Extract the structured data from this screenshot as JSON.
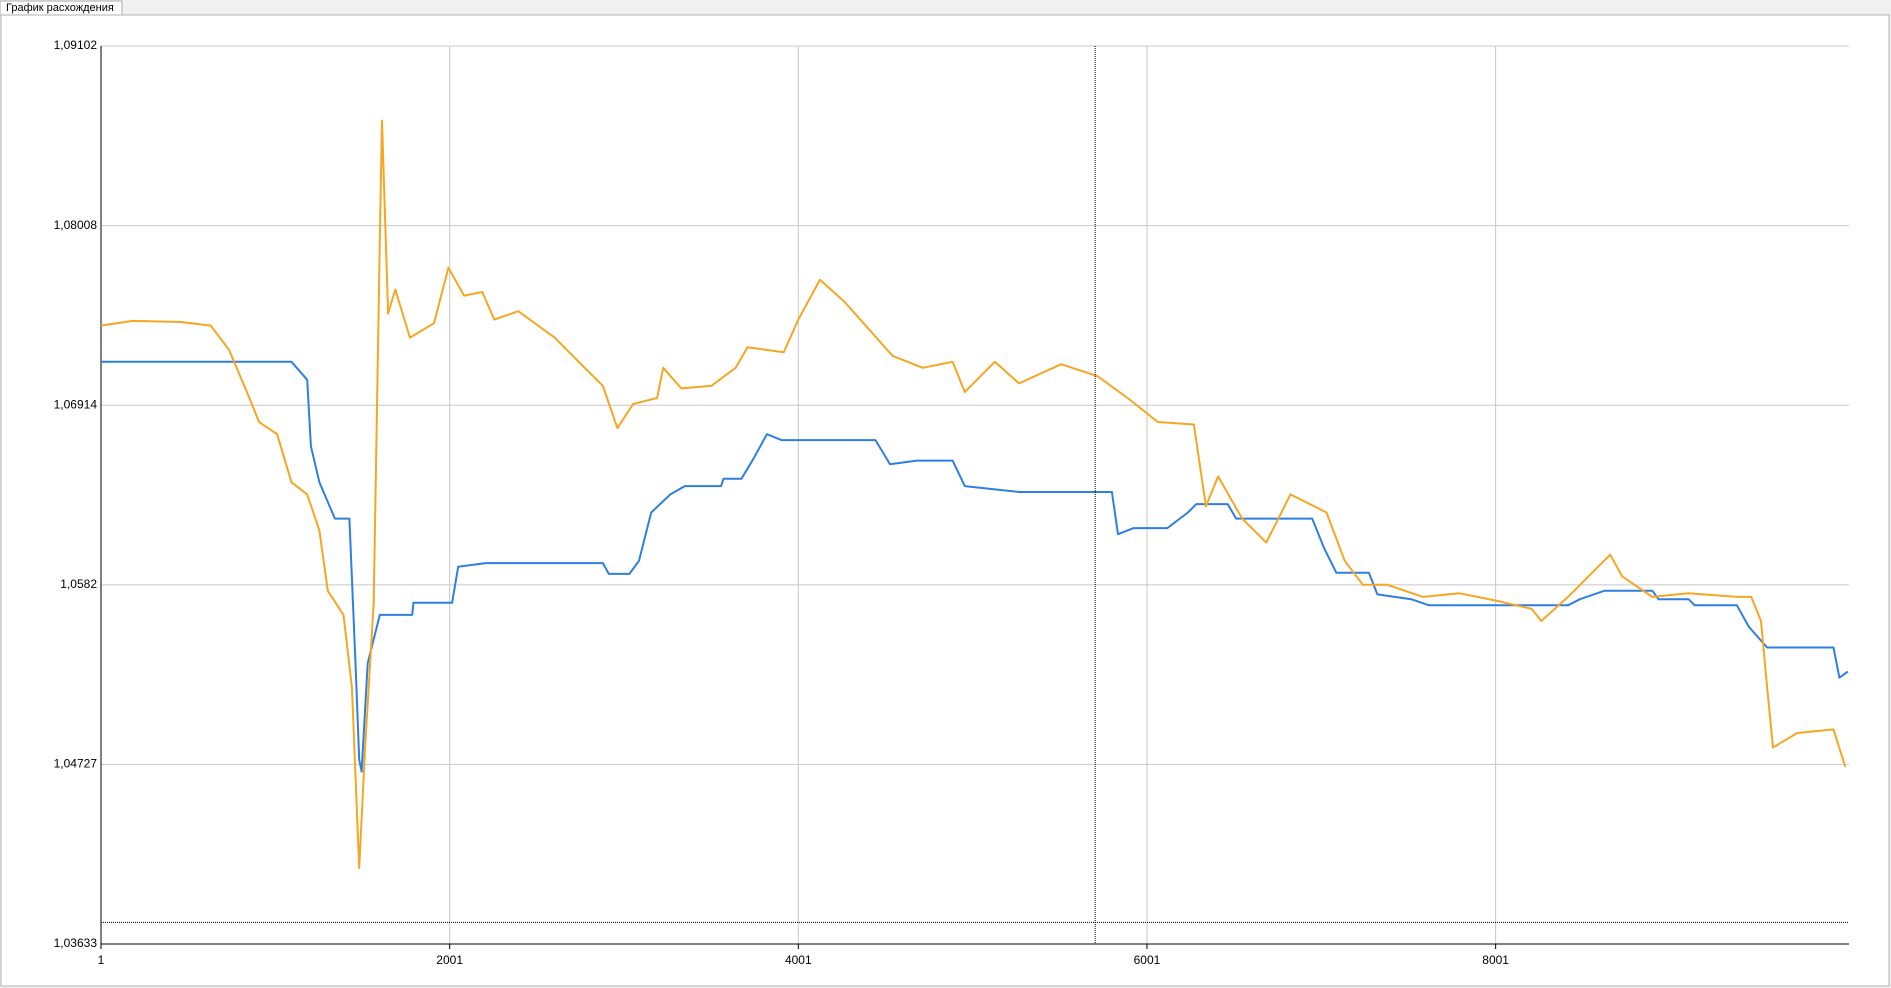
{
  "chart_data": {
    "type": "line",
    "title": "График расхождения",
    "xlim": [
      1,
      10028
    ],
    "xticks": [
      1,
      2001,
      4001,
      6001,
      8001
    ],
    "ylim": [
      1.03633,
      1.09102
    ],
    "yticks": [
      {
        "value": 1.03633,
        "label": "1,03633"
      },
      {
        "value": 1.04727,
        "label": "1,04727"
      },
      {
        "value": 1.0582,
        "label": "1,0582"
      },
      {
        "value": 1.06914,
        "label": "1,06914"
      },
      {
        "value": 1.08008,
        "label": "1,08008"
      },
      {
        "value": 1.09102,
        "label": "1,09102"
      }
    ],
    "grid": true,
    "cursor": {
      "x": 5704,
      "y": 1.03765
    },
    "series": [
      {
        "color": "#2f7fe0",
        "x": [
          1,
          1094,
          1184,
          1205,
          1254,
          1343,
          1426,
          1461,
          1482,
          1496,
          1531,
          1600,
          1786,
          1793,
          2015,
          2050,
          2208,
          2880,
          2914,
          3032,
          3087,
          3157,
          3267,
          3350,
          3558,
          3572,
          3675,
          3745,
          3821,
          3904,
          4444,
          4527,
          4680,
          4886,
          4956,
          5267,
          5800,
          5835,
          5924,
          6118,
          6236,
          6284,
          6464,
          6513,
          6949,
          7018,
          7087,
          7274,
          7323,
          7516,
          7620,
          8416,
          8485,
          8624,
          8900,
          8935,
          9108,
          9143,
          9385,
          9454,
          9558,
          9939,
          9973,
          10021
        ],
        "values": [
          1.07179,
          1.07179,
          1.07069,
          1.06665,
          1.06445,
          1.06224,
          1.06224,
          1.05343,
          1.04756,
          1.04683,
          1.05343,
          1.05637,
          1.05637,
          1.05711,
          1.05711,
          1.05931,
          1.05953,
          1.05953,
          1.05887,
          1.05887,
          1.05967,
          1.06261,
          1.06371,
          1.06422,
          1.06422,
          1.06467,
          1.06467,
          1.06591,
          1.06738,
          1.06702,
          1.06702,
          1.06555,
          1.06577,
          1.06577,
          1.06422,
          1.06386,
          1.06386,
          1.06129,
          1.06166,
          1.06166,
          1.06261,
          1.06312,
          1.06312,
          1.06224,
          1.06224,
          1.06041,
          1.05894,
          1.05894,
          1.05762,
          1.05733,
          1.05696,
          1.05696,
          1.05733,
          1.05784,
          1.05784,
          1.05733,
          1.05733,
          1.05696,
          1.05696,
          1.05564,
          1.05439,
          1.05439,
          1.05255,
          1.05292
        ]
      },
      {
        "color": "#f5a623",
        "x": [
          1,
          181,
          458,
          631,
          735,
          838,
          908,
          1011,
          1094,
          1184,
          1254,
          1302,
          1392,
          1440,
          1482,
          1516,
          1565,
          1600,
          1613,
          1648,
          1689,
          1773,
          1911,
          1994,
          2084,
          2188,
          2257,
          2395,
          2603,
          2741,
          2880,
          2963,
          3053,
          3191,
          3226,
          3330,
          3502,
          3641,
          3710,
          3918,
          4001,
          4125,
          4264,
          4437,
          4541,
          4714,
          4886,
          4956,
          5128,
          5267,
          5509,
          5717,
          5890,
          6063,
          6270,
          6339,
          6409,
          6547,
          6685,
          6755,
          6824,
          7031,
          7135,
          7239,
          7377,
          7585,
          7793,
          8000,
          8208,
          8263,
          8416,
          8658,
          8727,
          8900,
          9108,
          9385,
          9467,
          9523,
          9558,
          9592,
          9731,
          9939,
          10007
        ],
        "values": [
          1.07399,
          1.07428,
          1.07421,
          1.07399,
          1.07252,
          1.06995,
          1.06812,
          1.06738,
          1.06445,
          1.06371,
          1.06151,
          1.05784,
          1.05637,
          1.05197,
          1.04095,
          1.0483,
          1.05711,
          1.07913,
          1.08647,
          1.07472,
          1.07619,
          1.07326,
          1.07414,
          1.07751,
          1.07582,
          1.07604,
          1.07436,
          1.07487,
          1.07326,
          1.07179,
          1.07032,
          1.06775,
          1.06922,
          1.06958,
          1.07142,
          1.07017,
          1.07032,
          1.07142,
          1.07267,
          1.07237,
          1.07436,
          1.07678,
          1.07546,
          1.0734,
          1.07215,
          1.07142,
          1.07179,
          1.06995,
          1.07179,
          1.07047,
          1.07164,
          1.07091,
          1.06958,
          1.06812,
          1.06797,
          1.06298,
          1.06481,
          1.06224,
          1.06078,
          1.06224,
          1.06371,
          1.06261,
          1.05967,
          1.05821,
          1.05821,
          1.05747,
          1.05769,
          1.05725,
          1.05674,
          1.056,
          1.05747,
          1.06004,
          1.05872,
          1.05747,
          1.05769,
          1.05747,
          1.05747,
          1.056,
          1.05197,
          1.0483,
          1.04918,
          1.0494,
          1.04712
        ]
      }
    ]
  }
}
